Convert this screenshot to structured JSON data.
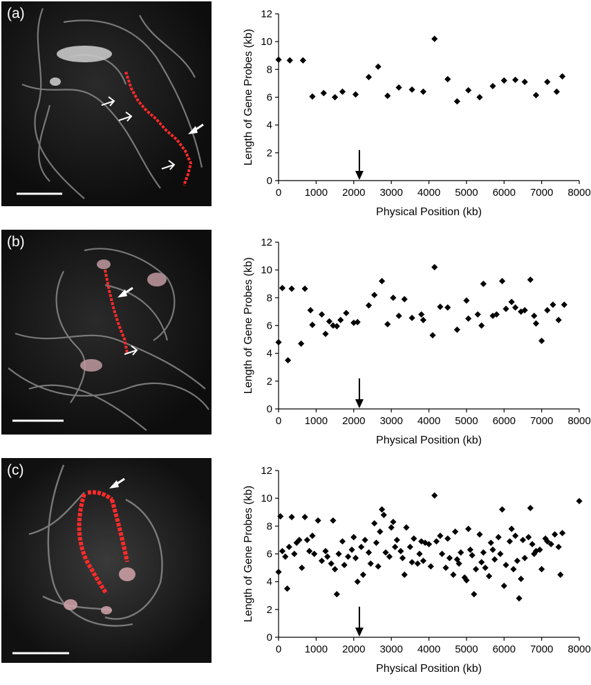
{
  "panels": [
    {
      "label": "(a)",
      "micrograph": {
        "red_path": [
          [
            182,
            104
          ],
          [
            190,
            128
          ],
          [
            200,
            146
          ],
          [
            212,
            160
          ],
          [
            226,
            172
          ],
          [
            240,
            188
          ],
          [
            256,
            202
          ],
          [
            268,
            218
          ],
          [
            276,
            236
          ],
          [
            272,
            252
          ],
          [
            266,
            268
          ]
        ],
        "open_arrows": [
          [
            165,
            146
          ],
          [
            190,
            168
          ],
          [
            252,
            238
          ]
        ],
        "solid_arrows": [
          [
            272,
            194
          ]
        ]
      }
    },
    {
      "label": "(b)",
      "micrograph": {
        "red_path": [
          [
            152,
            390
          ],
          [
            158,
            420
          ],
          [
            165,
            448
          ],
          [
            172,
            470
          ],
          [
            180,
            490
          ],
          [
            184,
            510
          ]
        ],
        "open_arrows": [
          [
            198,
            506
          ]
        ],
        "solid_arrows": [
          [
            170,
            430
          ]
        ]
      }
    },
    {
      "label": "(c)",
      "micrograph": {
        "red_path": [],
        "open_arrows": [],
        "solid_arrows": [
          [
            158,
            706
          ]
        ]
      }
    }
  ],
  "chart_data": [
    {
      "type": "scatter",
      "xlabel": "Physical Position (kb)",
      "ylabel": "Length of Gene Probes (kb)",
      "xlim": [
        0,
        8000
      ],
      "ylim": [
        0,
        12
      ],
      "xticks": [
        0,
        1000,
        2000,
        3000,
        4000,
        5000,
        6000,
        7000,
        8000
      ],
      "yticks": [
        0,
        2,
        4,
        6,
        8,
        10,
        12
      ],
      "marker_arrow_x": 2150,
      "points": [
        [
          0,
          8.7
        ],
        [
          300,
          8.65
        ],
        [
          650,
          8.65
        ],
        [
          900,
          6.05
        ],
        [
          1200,
          6.3
        ],
        [
          1500,
          6.0
        ],
        [
          1700,
          6.4
        ],
        [
          2050,
          6.2
        ],
        [
          2400,
          7.45
        ],
        [
          2650,
          8.2
        ],
        [
          2900,
          6.1
        ],
        [
          3200,
          6.7
        ],
        [
          3550,
          6.55
        ],
        [
          3850,
          6.4
        ],
        [
          4150,
          10.2
        ],
        [
          4500,
          7.3
        ],
        [
          4750,
          5.7
        ],
        [
          5050,
          6.5
        ],
        [
          5350,
          6.0
        ],
        [
          5700,
          6.8
        ],
        [
          6000,
          7.2
        ],
        [
          6300,
          7.25
        ],
        [
          6550,
          7.1
        ],
        [
          6850,
          6.15
        ],
        [
          7150,
          7.1
        ],
        [
          7400,
          6.4
        ],
        [
          7550,
          7.5
        ]
      ]
    },
    {
      "type": "scatter",
      "xlabel": "Physical Position (kb)",
      "ylabel": "Length of Gene Probes (kb)",
      "xlim": [
        0,
        8000
      ],
      "ylim": [
        0,
        12
      ],
      "xticks": [
        0,
        1000,
        2000,
        3000,
        4000,
        5000,
        6000,
        7000,
        8000
      ],
      "yticks": [
        0,
        2,
        4,
        6,
        8,
        10,
        12
      ],
      "marker_arrow_x": 2150,
      "points": [
        [
          0,
          4.8
        ],
        [
          100,
          8.7
        ],
        [
          250,
          3.5
        ],
        [
          350,
          8.65
        ],
        [
          600,
          4.7
        ],
        [
          700,
          8.65
        ],
        [
          850,
          7.1
        ],
        [
          900,
          6.05
        ],
        [
          1150,
          6.8
        ],
        [
          1250,
          5.4
        ],
        [
          1350,
          6.3
        ],
        [
          1450,
          6.0
        ],
        [
          1550,
          5.95
        ],
        [
          1650,
          6.4
        ],
        [
          1800,
          6.9
        ],
        [
          2000,
          6.2
        ],
        [
          2100,
          6.25
        ],
        [
          2400,
          7.45
        ],
        [
          2550,
          8.2
        ],
        [
          2750,
          9.2
        ],
        [
          2900,
          6.1
        ],
        [
          3050,
          8.0
        ],
        [
          3200,
          6.7
        ],
        [
          3350,
          7.9
        ],
        [
          3550,
          6.55
        ],
        [
          3800,
          6.8
        ],
        [
          3850,
          6.4
        ],
        [
          4100,
          5.3
        ],
        [
          4150,
          10.2
        ],
        [
          4300,
          7.35
        ],
        [
          4500,
          7.3
        ],
        [
          4750,
          5.7
        ],
        [
          5000,
          7.8
        ],
        [
          5050,
          6.5
        ],
        [
          5300,
          6.8
        ],
        [
          5400,
          6.0
        ],
        [
          5450,
          9.0
        ],
        [
          5700,
          6.7
        ],
        [
          5800,
          6.8
        ],
        [
          5950,
          9.2
        ],
        [
          6050,
          7.2
        ],
        [
          6200,
          7.7
        ],
        [
          6300,
          7.3
        ],
        [
          6450,
          7.0
        ],
        [
          6550,
          7.1
        ],
        [
          6700,
          9.3
        ],
        [
          6800,
          6.7
        ],
        [
          6850,
          6.15
        ],
        [
          7000,
          4.9
        ],
        [
          7150,
          7.1
        ],
        [
          7300,
          7.5
        ],
        [
          7450,
          6.4
        ],
        [
          7600,
          7.5
        ]
      ]
    },
    {
      "type": "scatter",
      "xlabel": "Physical Position (kb)",
      "ylabel": "Length of Gene Probes (kb)",
      "xlim": [
        0,
        8000
      ],
      "ylim": [
        0,
        12
      ],
      "xticks": [
        0,
        1000,
        2000,
        3000,
        4000,
        5000,
        6000,
        7000,
        8000
      ],
      "yticks": [
        0,
        2,
        4,
        6,
        8,
        10,
        12
      ],
      "marker_arrow_x": 2150,
      "points": [
        [
          0,
          4.7
        ],
        [
          50,
          8.7
        ],
        [
          100,
          6.2
        ],
        [
          180,
          5.8
        ],
        [
          230,
          3.5
        ],
        [
          280,
          6.5
        ],
        [
          350,
          8.65
        ],
        [
          420,
          6.0
        ],
        [
          480,
          6.8
        ],
        [
          550,
          7.0
        ],
        [
          620,
          5.0
        ],
        [
          700,
          8.65
        ],
        [
          760,
          7.0
        ],
        [
          820,
          6.2
        ],
        [
          900,
          7.3
        ],
        [
          950,
          6.0
        ],
        [
          1050,
          8.4
        ],
        [
          1150,
          5.5
        ],
        [
          1250,
          6.2
        ],
        [
          1300,
          5.8
        ],
        [
          1400,
          5.3
        ],
        [
          1450,
          8.4
        ],
        [
          1500,
          4.9
        ],
        [
          1550,
          3.1
        ],
        [
          1600,
          6.0
        ],
        [
          1700,
          6.9
        ],
        [
          1750,
          5.2
        ],
        [
          1850,
          5.8
        ],
        [
          1950,
          6.3
        ],
        [
          2000,
          7.2
        ],
        [
          2050,
          5.7
        ],
        [
          2100,
          4.0
        ],
        [
          2200,
          6.5
        ],
        [
          2250,
          4.5
        ],
        [
          2300,
          7.0
        ],
        [
          2400,
          6.1
        ],
        [
          2450,
          5.3
        ],
        [
          2550,
          8.2
        ],
        [
          2600,
          6.8
        ],
        [
          2650,
          5.1
        ],
        [
          2700,
          7.6
        ],
        [
          2750,
          9.2
        ],
        [
          2800,
          8.8
        ],
        [
          2850,
          6.1
        ],
        [
          2950,
          5.8
        ],
        [
          3000,
          7.9
        ],
        [
          3050,
          8.3
        ],
        [
          3100,
          6.5
        ],
        [
          3150,
          7.0
        ],
        [
          3250,
          6.2
        ],
        [
          3300,
          5.7
        ],
        [
          3350,
          4.5
        ],
        [
          3400,
          7.9
        ],
        [
          3500,
          6.5
        ],
        [
          3550,
          5.4
        ],
        [
          3600,
          7.1
        ],
        [
          3700,
          5.3
        ],
        [
          3750,
          6.0
        ],
        [
          3800,
          6.9
        ],
        [
          3850,
          5.5
        ],
        [
          3900,
          6.8
        ],
        [
          4000,
          6.7
        ],
        [
          4050,
          5.1
        ],
        [
          4150,
          10.2
        ],
        [
          4200,
          6.9
        ],
        [
          4300,
          7.3
        ],
        [
          4350,
          6.0
        ],
        [
          4450,
          5.0
        ],
        [
          4500,
          7.1
        ],
        [
          4550,
          5.7
        ],
        [
          4650,
          4.5
        ],
        [
          4700,
          7.6
        ],
        [
          4750,
          5.6
        ],
        [
          4800,
          5.3
        ],
        [
          4850,
          6.1
        ],
        [
          4950,
          4.3
        ],
        [
          5000,
          4.1
        ],
        [
          5050,
          7.8
        ],
        [
          5100,
          6.3
        ],
        [
          5150,
          5.9
        ],
        [
          5200,
          3.1
        ],
        [
          5250,
          4.9
        ],
        [
          5350,
          7.4
        ],
        [
          5400,
          5.4
        ],
        [
          5450,
          6.1
        ],
        [
          5500,
          5.0
        ],
        [
          5600,
          4.4
        ],
        [
          5650,
          6.8
        ],
        [
          5700,
          6.3
        ],
        [
          5750,
          5.6
        ],
        [
          5850,
          7.2
        ],
        [
          5900,
          6.0
        ],
        [
          5950,
          9.2
        ],
        [
          6000,
          3.7
        ],
        [
          6050,
          5.2
        ],
        [
          6150,
          6.9
        ],
        [
          6200,
          7.8
        ],
        [
          6250,
          4.9
        ],
        [
          6300,
          7.3
        ],
        [
          6350,
          5.5
        ],
        [
          6400,
          2.8
        ],
        [
          6450,
          4.2
        ],
        [
          6500,
          7.0
        ],
        [
          6550,
          5.7
        ],
        [
          6650,
          7.2
        ],
        [
          6700,
          9.3
        ],
        [
          6750,
          6.7
        ],
        [
          6800,
          6.0
        ],
        [
          6850,
          6.2
        ],
        [
          6950,
          6.3
        ],
        [
          7000,
          4.9
        ],
        [
          7100,
          7.1
        ],
        [
          7150,
          6.9
        ],
        [
          7250,
          6.7
        ],
        [
          7350,
          7.4
        ],
        [
          7450,
          6.5
        ],
        [
          7500,
          4.5
        ],
        [
          7550,
          7.5
        ],
        [
          8000,
          9.8
        ]
      ]
    }
  ]
}
